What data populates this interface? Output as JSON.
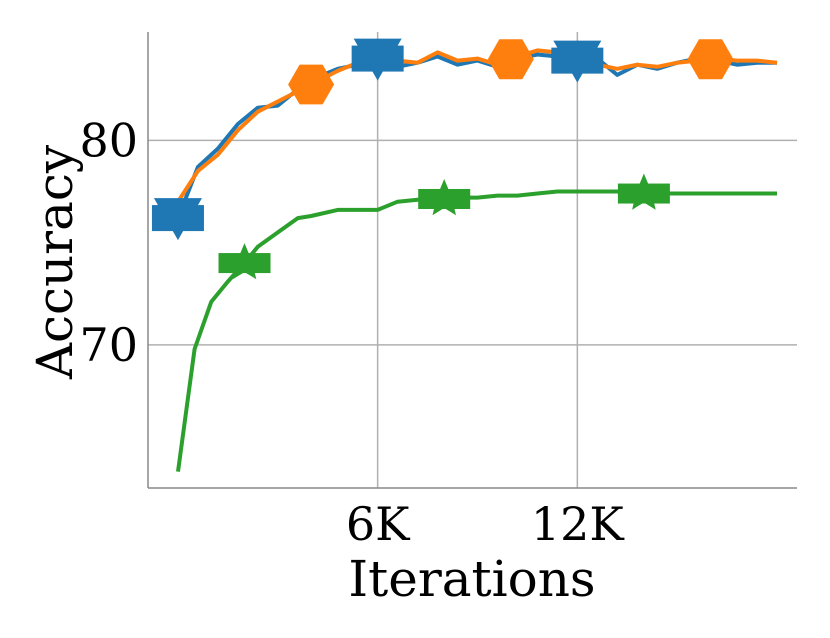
{
  "chart_data": {
    "type": "line",
    "xlabel": "Iterations",
    "ylabel": "Accuracy",
    "xlim": [
      -900,
      18600
    ],
    "ylim": [
      63.0,
      85.3
    ],
    "grid": true,
    "x_ticks": [
      {
        "value": 6000,
        "label": "6K"
      },
      {
        "value": 12000,
        "label": "12K"
      }
    ],
    "y_ticks": [
      {
        "value": 70,
        "label": "70"
      },
      {
        "value": 80,
        "label": "80"
      }
    ],
    "series": [
      {
        "color": "#1f77b4",
        "marker": "down-triangle-square",
        "x": [
          0,
          600,
          1200,
          1800,
          2400,
          3000,
          3600,
          4200,
          4800,
          5400,
          6000,
          6600,
          7200,
          7800,
          8400,
          9000,
          9600,
          10200,
          10800,
          11400,
          12000,
          12600,
          13200,
          13800,
          14400,
          15000,
          15600,
          16200,
          16800,
          17400,
          18000
        ],
        "y": [
          76.2,
          78.7,
          79.6,
          80.8,
          81.6,
          81.7,
          82.5,
          83.1,
          83.5,
          83.7,
          84.0,
          83.6,
          83.8,
          84.1,
          83.7,
          83.9,
          83.6,
          84.0,
          84.2,
          84.1,
          83.9,
          84.0,
          83.2,
          83.7,
          83.5,
          83.8,
          84.0,
          83.9,
          83.7,
          83.8,
          83.8
        ],
        "marker_x": [
          0,
          6000,
          12000
        ]
      },
      {
        "color": "#ff7f0e",
        "marker": "hexagon",
        "x": [
          0,
          600,
          1200,
          1800,
          2400,
          3000,
          3600,
          4200,
          4800,
          5400,
          6000,
          6600,
          7200,
          7800,
          8400,
          9000,
          9600,
          10200,
          10800,
          11400,
          12000,
          12600,
          13200,
          13800,
          14400,
          15000,
          15600,
          16200,
          16800,
          17400,
          18000
        ],
        "y": [
          77.0,
          78.5,
          79.3,
          80.5,
          81.4,
          81.9,
          82.4,
          82.9,
          83.4,
          83.8,
          84.0,
          83.9,
          83.8,
          84.3,
          83.9,
          84.0,
          83.7,
          84.1,
          84.4,
          84.3,
          84.0,
          83.7,
          83.5,
          83.7,
          83.6,
          83.8,
          83.9,
          84.0,
          83.9,
          83.9,
          83.8
        ],
        "marker_x": [
          4000,
          10000,
          16000
        ]
      },
      {
        "color": "#2ca02c",
        "marker": "star-square",
        "x": [
          0,
          500,
          1000,
          1500,
          2000,
          2400,
          3000,
          3600,
          4000,
          4800,
          5400,
          6000,
          6600,
          7200,
          7800,
          8400,
          9000,
          9600,
          10200,
          10800,
          11400,
          12000,
          12600,
          13200,
          13800,
          14400,
          15000,
          15600,
          16200,
          16800,
          17400,
          18000
        ],
        "y": [
          63.8,
          69.8,
          72.1,
          73.1,
          74.0,
          74.8,
          75.5,
          76.2,
          76.3,
          76.6,
          76.6,
          76.6,
          77.0,
          77.1,
          77.1,
          77.2,
          77.2,
          77.3,
          77.3,
          77.4,
          77.5,
          77.5,
          77.5,
          77.5,
          77.4,
          77.4,
          77.4,
          77.4,
          77.4,
          77.4,
          77.4,
          77.4
        ],
        "marker_x": [
          2000,
          8000,
          14000
        ]
      }
    ]
  }
}
